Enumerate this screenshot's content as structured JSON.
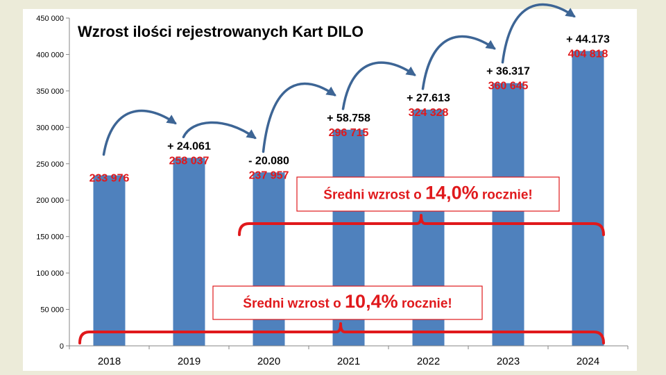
{
  "chart_data": {
    "type": "bar",
    "title": "Wzrost ilości rejestrowanych Kart DILO",
    "categories": [
      "2018",
      "2019",
      "2020",
      "2021",
      "2022",
      "2023",
      "2024"
    ],
    "values": [
      233976,
      258037,
      237957,
      296715,
      324328,
      360645,
      404818
    ],
    "value_labels": [
      "233 976",
      "258 037",
      "237 957",
      "296 715",
      "324 328",
      "360 645",
      "404 818"
    ],
    "change_labels": [
      "+ 24.061",
      "- 20.080",
      "+ 58.758",
      "+ 27.613",
      "+ 36.317",
      "+ 44.173"
    ],
    "ylim": [
      0,
      450000
    ],
    "yticks": [
      0,
      50000,
      100000,
      150000,
      200000,
      250000,
      300000,
      350000,
      400000,
      450000
    ],
    "ytick_labels": [
      "0",
      "50 000",
      "100 000",
      "150 000",
      "200 000",
      "250 000",
      "300 000",
      "350 000",
      "400 000",
      "450 000"
    ],
    "xlabel": "",
    "ylabel": "",
    "grid": false,
    "legend": "none",
    "annotations": [
      {
        "prefix": "Średni wzrost o ",
        "value": "14,0%",
        "suffix": " rocznie!",
        "from": "2020",
        "to": "2024"
      },
      {
        "prefix": "Średni wzrost o ",
        "value": "10,4%",
        "suffix": " rocznie!",
        "from": "2018",
        "to": "2024"
      }
    ]
  },
  "colors": {
    "bar": "#4f81bd",
    "value_label": "#e0191c",
    "change_label": "#000000",
    "arrow": "#3d6595",
    "bracket": "#e0191c",
    "annotation_text": "#e0191c",
    "axis": "#868686",
    "background": "#ecebd9",
    "panel": "#ffffff"
  }
}
